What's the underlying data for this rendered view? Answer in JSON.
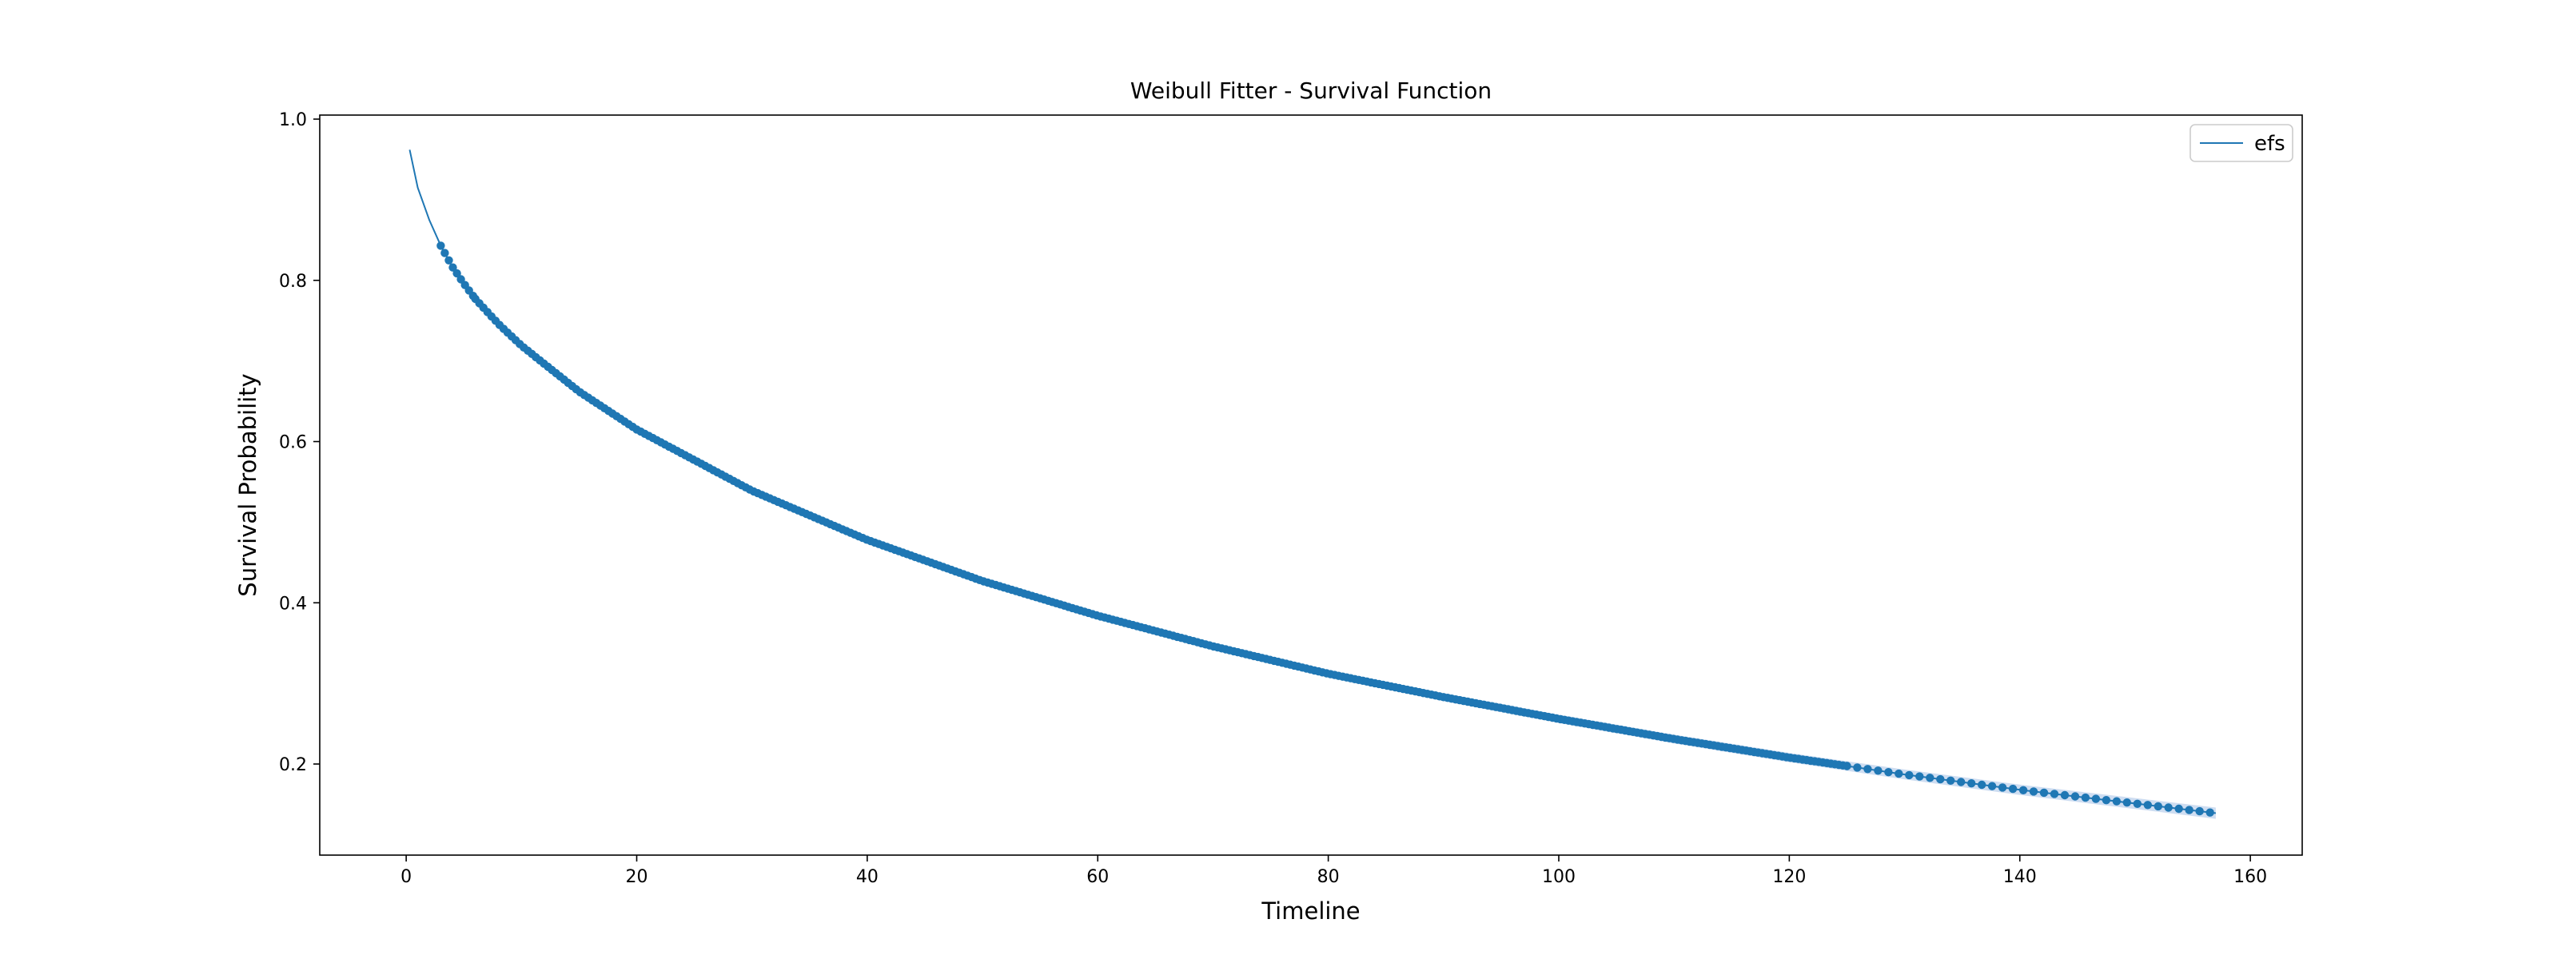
{
  "chart_data": {
    "type": "line",
    "title": "Weibull Fitter - Survival Function",
    "xlabel": "Timeline",
    "ylabel": "Survival Probability",
    "xlim": [
      -7.5,
      164.5
    ],
    "ylim": [
      0.087,
      1.005
    ],
    "x_ticks": [
      0,
      20,
      40,
      60,
      80,
      100,
      120,
      140,
      160
    ],
    "y_ticks": [
      0.2,
      0.4,
      0.6,
      0.8,
      1.0
    ],
    "x_tick_labels": [
      "0",
      "20",
      "40",
      "60",
      "80",
      "100",
      "120",
      "140",
      "160"
    ],
    "y_tick_labels": [
      "0.2",
      "0.4",
      "0.6",
      "0.8",
      "1.0"
    ],
    "grid": false,
    "legend": {
      "position": "top-right",
      "entries": [
        "efs"
      ]
    },
    "colors": {
      "series": "#1f77b4",
      "band": "#aec7e8"
    },
    "series": [
      {
        "name": "efs",
        "style": "line with dense point markers",
        "x": [
          0.3,
          1,
          2,
          3,
          4,
          5,
          6,
          8,
          10,
          15,
          20,
          30,
          40,
          50,
          60,
          70,
          80,
          90,
          100,
          110,
          120,
          130,
          140,
          150,
          157
        ],
        "y": [
          0.962,
          0.915,
          0.875,
          0.843,
          0.817,
          0.796,
          0.777,
          0.746,
          0.719,
          0.662,
          0.615,
          0.539,
          0.478,
          0.427,
          0.384,
          0.346,
          0.312,
          0.283,
          0.256,
          0.231,
          0.208,
          0.187,
          0.168,
          0.151,
          0.139
        ]
      }
    ]
  }
}
